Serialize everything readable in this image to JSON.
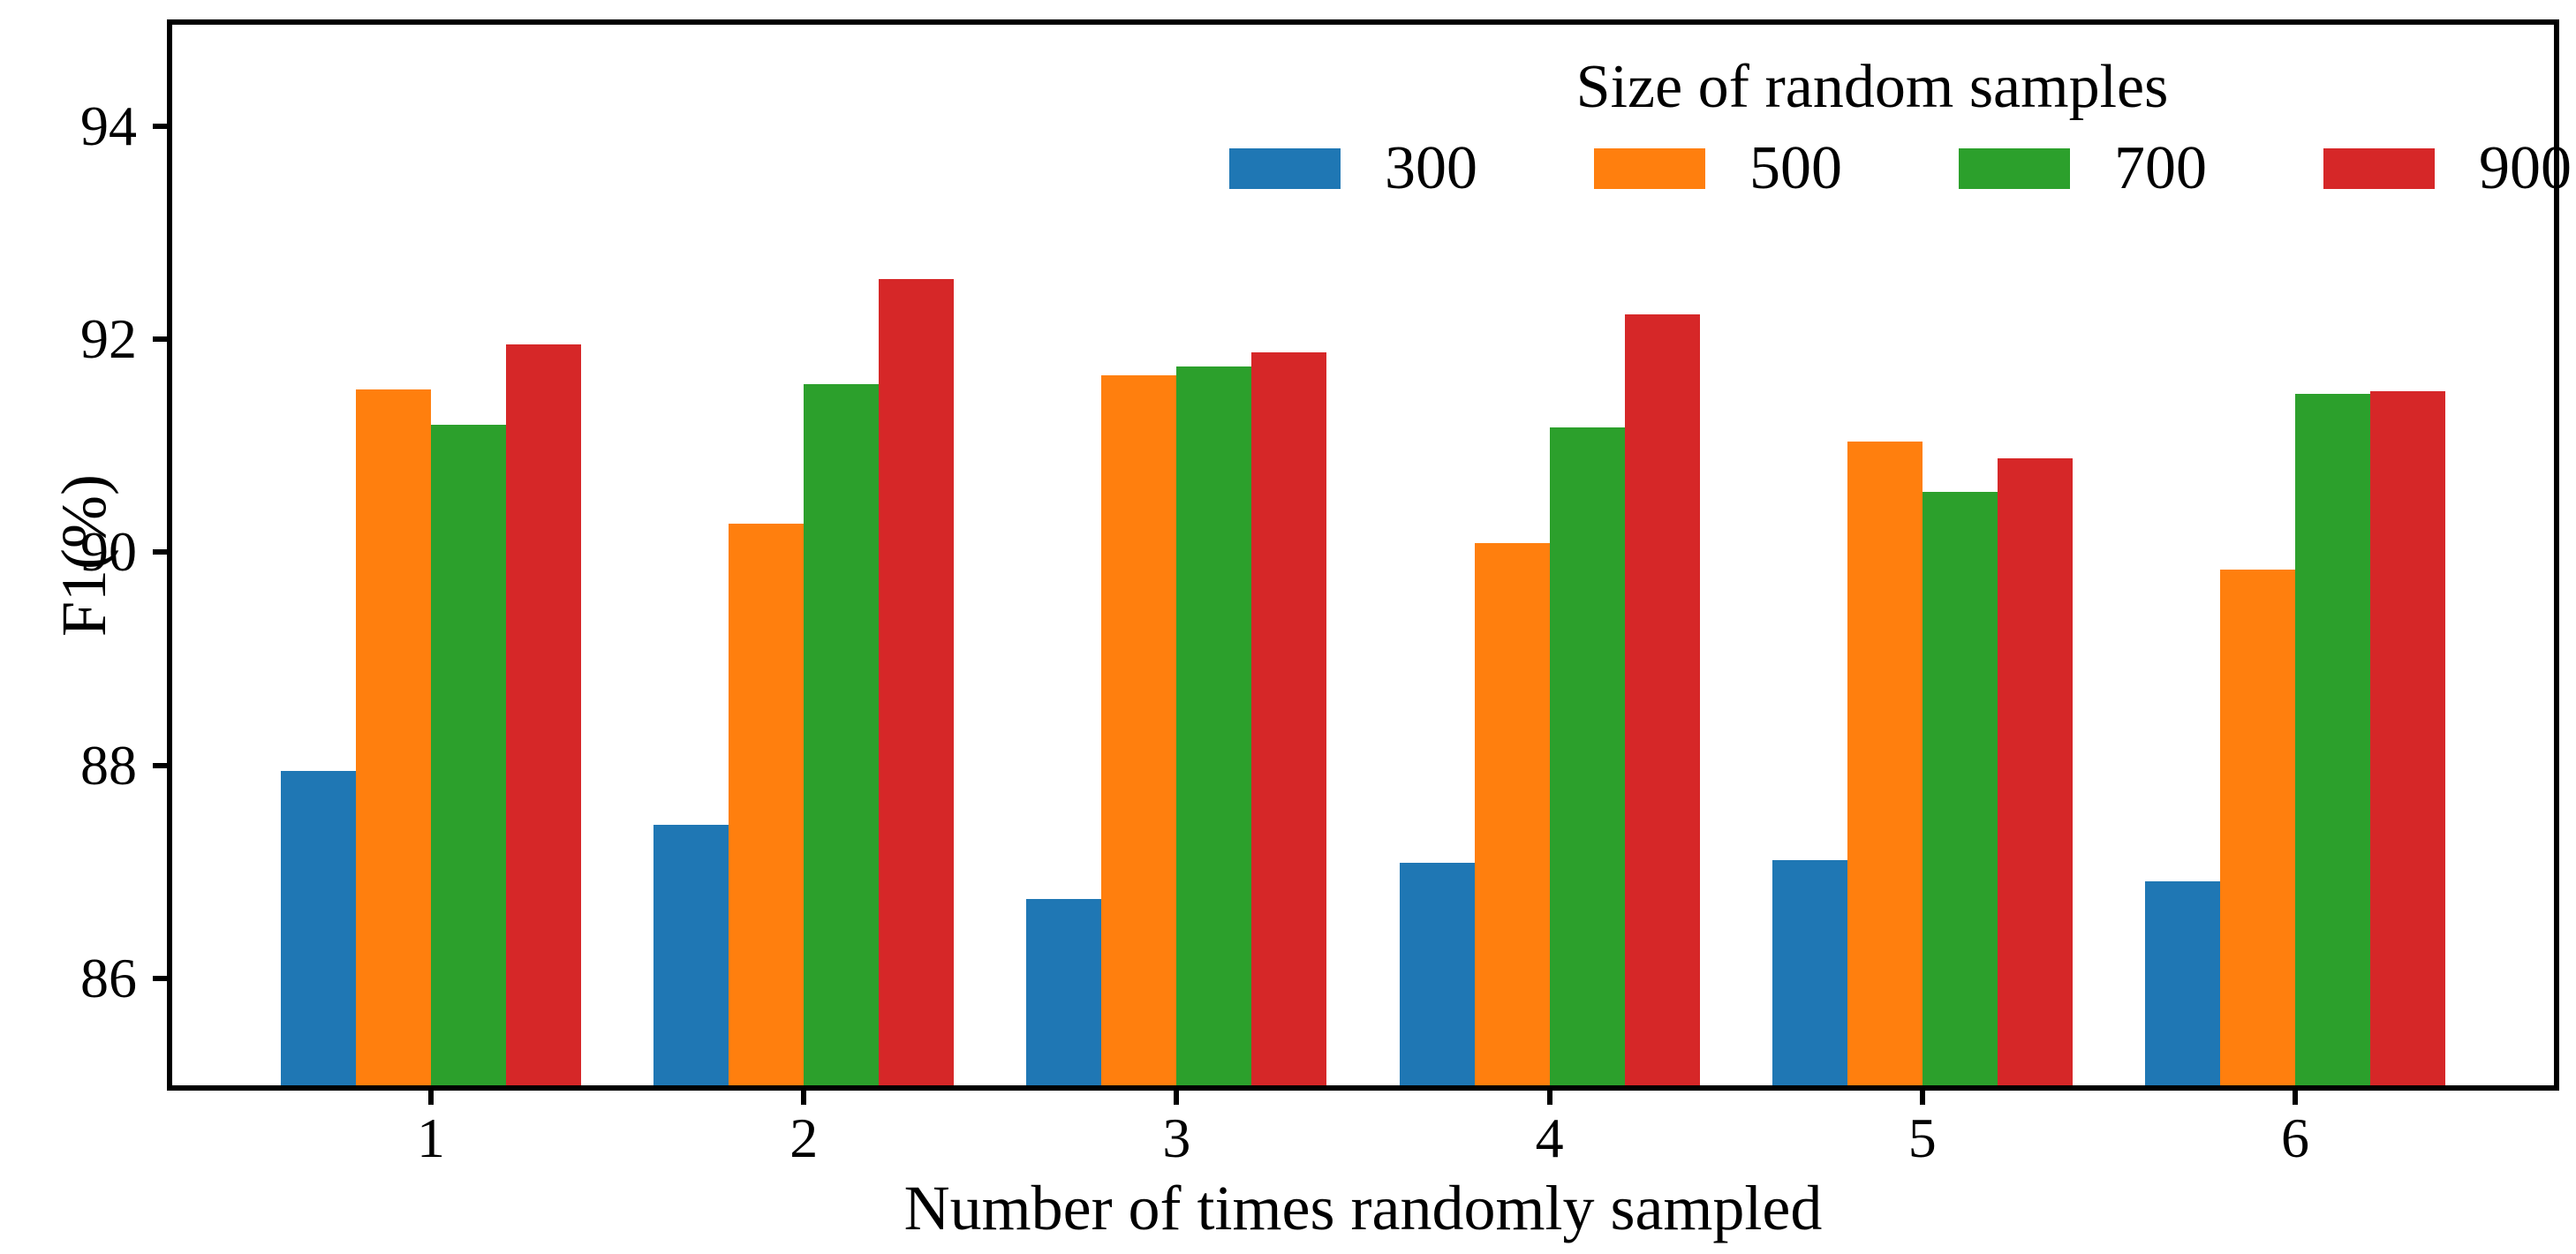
{
  "chart_data": {
    "type": "bar",
    "title": "",
    "xlabel": "Number of times randomly sampled",
    "ylabel": "F1(%)",
    "categories": [
      "1",
      "2",
      "3",
      "4",
      "5",
      "6"
    ],
    "series": [
      {
        "name": "300",
        "color": "#1f77b4",
        "values": [
          87.95,
          87.44,
          86.75,
          87.09,
          87.11,
          86.91
        ]
      },
      {
        "name": "500",
        "color": "#ff7f0e",
        "values": [
          91.53,
          90.27,
          91.66,
          90.09,
          91.04,
          89.84
        ]
      },
      {
        "name": "700",
        "color": "#2ca02c",
        "values": [
          91.2,
          91.58,
          91.74,
          91.17,
          90.57,
          91.49
        ]
      },
      {
        "name": "900",
        "color": "#d62728",
        "values": [
          91.95,
          92.56,
          91.88,
          92.23,
          90.88,
          91.51
        ]
      }
    ],
    "legend": {
      "title": "Size of random samples",
      "position": "upper right",
      "frame": false
    },
    "y_ticks": [
      86,
      88,
      90,
      92,
      94
    ],
    "ylim": [
      85,
      94.95
    ],
    "grid": false,
    "axis_color": "#000000"
  }
}
